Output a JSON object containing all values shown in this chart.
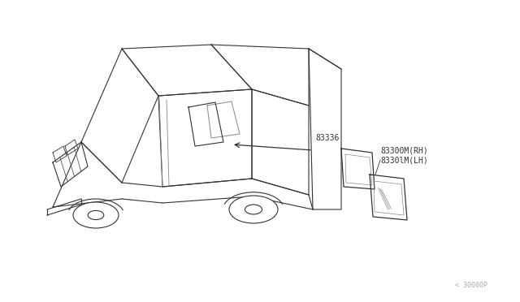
{
  "bg_color": "#ffffff",
  "line_color": "#333333",
  "light_line_color": "#888888",
  "fig_width": 6.4,
  "fig_height": 3.72,
  "dpi": 100,
  "part_label_1": "83336",
  "part_label_2": "83300M(RH)",
  "part_label_3": "8330lM(LH)",
  "watermark": "< 30000P",
  "label_color": "#aaaaaa",
  "font_size_parts": 7,
  "font_size_watermark": 6
}
